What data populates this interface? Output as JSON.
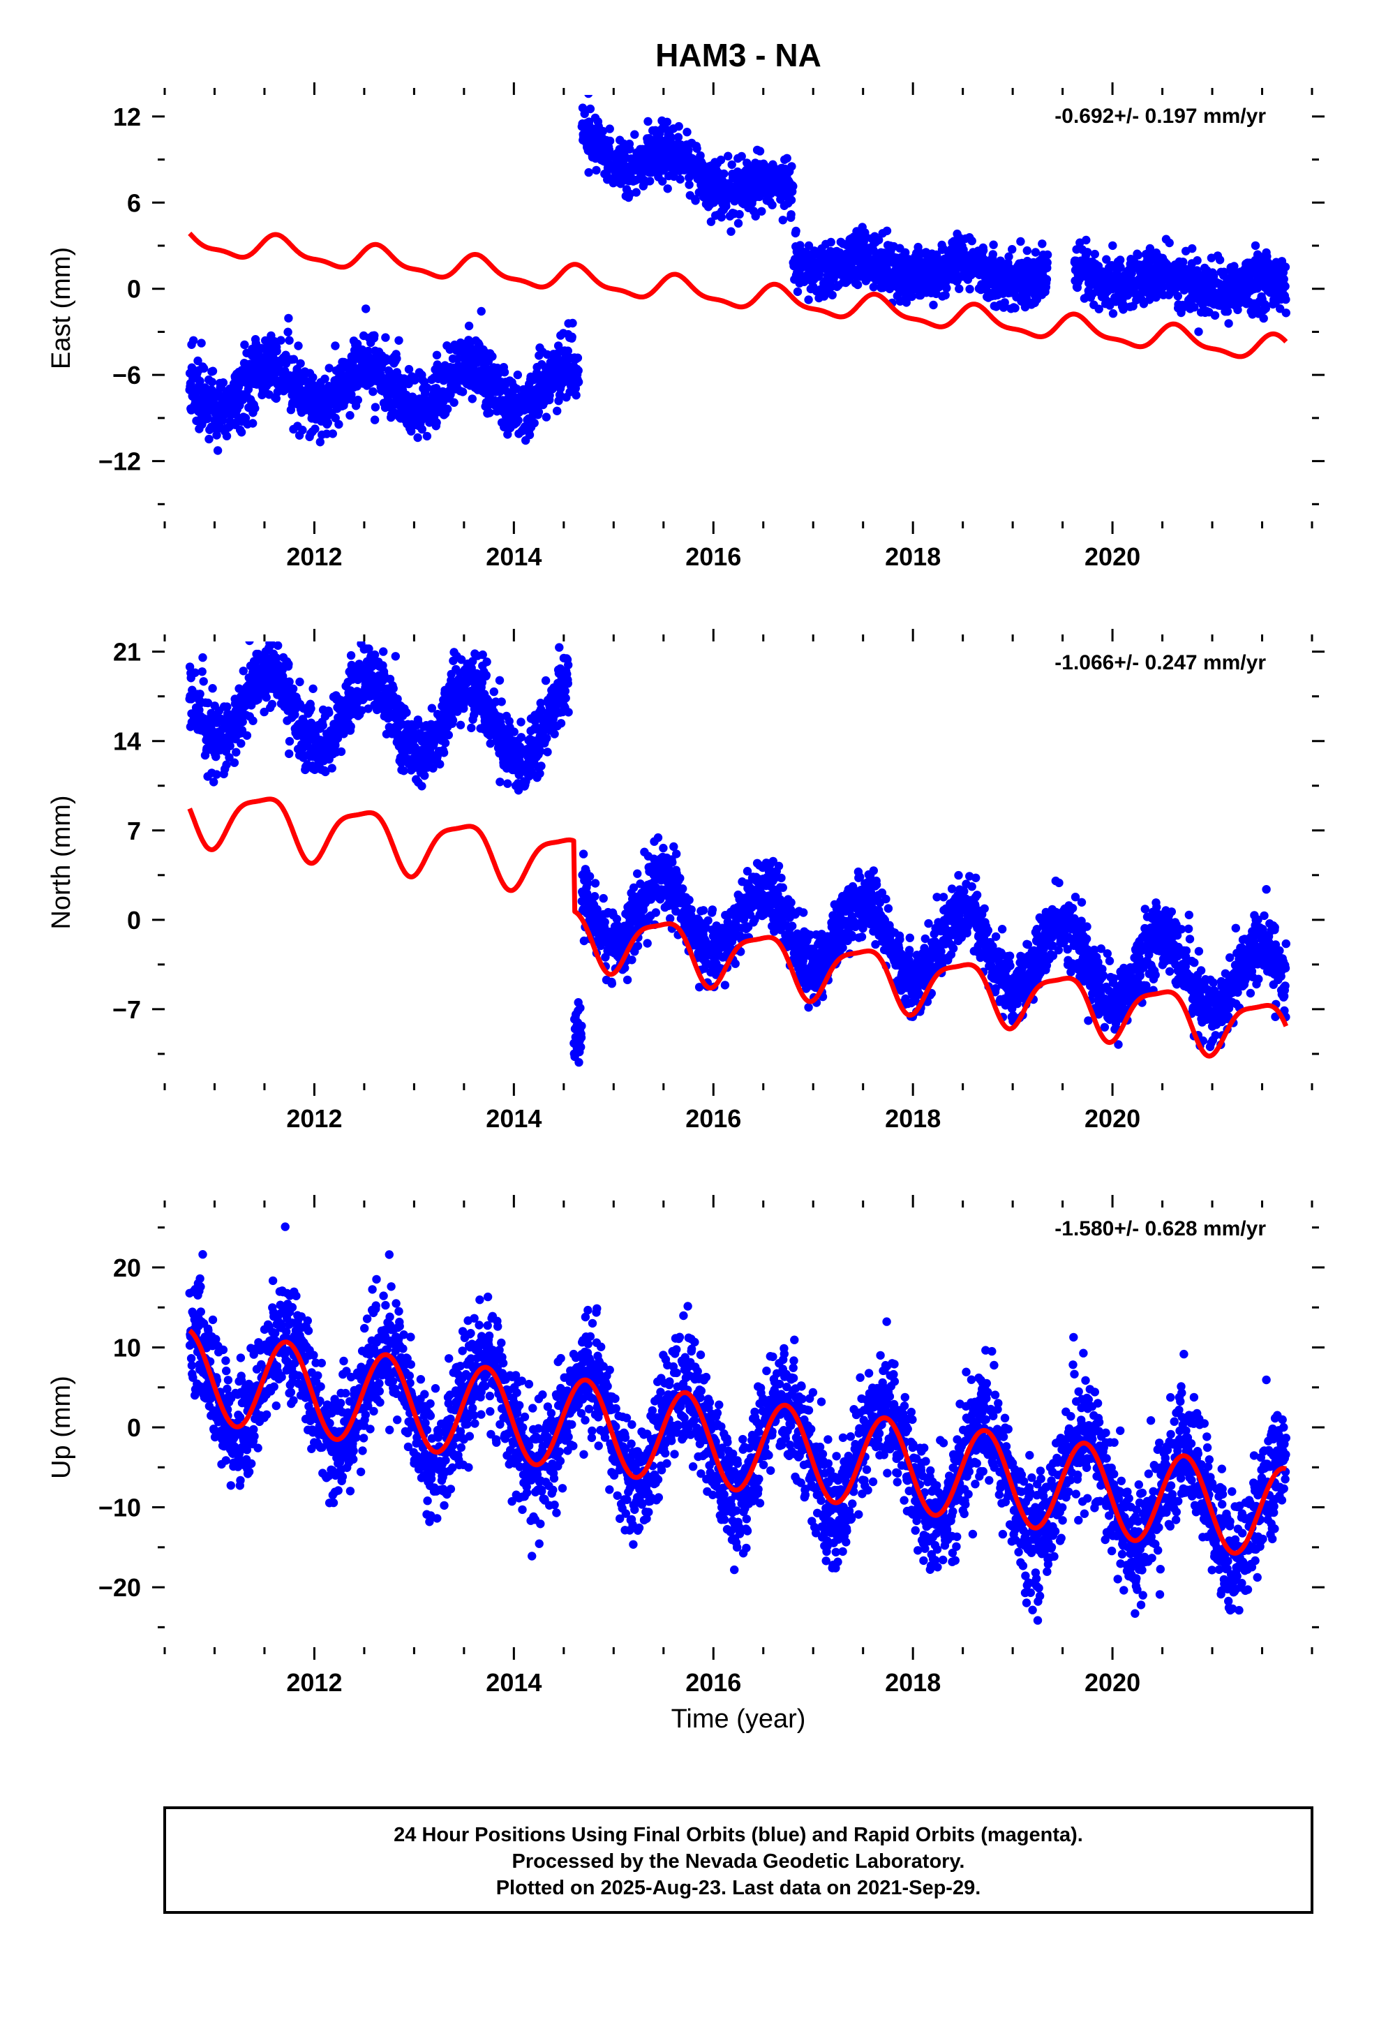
{
  "title": "HAM3 - NA",
  "xlabel": "Time (year)",
  "colors": {
    "final_orbits": "#0000ff",
    "model": "#ff0000",
    "frame": "#000000"
  },
  "footer": {
    "line1": "24 Hour Positions Using Final Orbits (blue) and Rapid Orbits (magenta).",
    "line2": "Processed by the Nevada Geodetic Laboratory.",
    "line3": "Plotted on 2025-Aug-23. Last data on 2021-Sep-29."
  },
  "chart_data": [
    {
      "type": "scatter",
      "component": "east",
      "ylabel": "East (mm)",
      "rate": "-0.692+/- 0.197 mm/yr",
      "xlim": [
        2010.5,
        2022.0
      ],
      "ylim": [
        -16.2,
        13.5
      ],
      "xticks": [
        2012,
        2014,
        2016,
        2018,
        2020
      ],
      "yticks": [
        12,
        6,
        0,
        -6,
        -12
      ],
      "observations": {
        "x_range": [
          2010.75,
          2021.74
        ],
        "gaps": [
          [
            2014.65,
            2014.68
          ],
          [
            2019.35,
            2019.62
          ]
        ],
        "segments": [
          {
            "x": [
              2010.75,
              2014.65
            ],
            "mean_start": -6.8,
            "slope_mm_per_yr": 0.0,
            "annual_amplitude": 1.5,
            "annual_peak_phase": 0.55,
            "scatter": 1.1
          },
          {
            "x": [
              2014.68,
              2016.8
            ],
            "mean_start": 10.2,
            "slope_mm_per_yr": -1.8,
            "annual_amplitude": 0.9,
            "annual_peak_phase": 0.6,
            "scatter": 0.9
          },
          {
            "x": [
              2016.8,
              2021.74
            ],
            "mean_start": 1.8,
            "slope_mm_per_yr": -0.35,
            "annual_amplitude": 0.5,
            "annual_peak_phase": 0.5,
            "scatter": 0.9
          }
        ]
      },
      "model": {
        "x_range": [
          2010.75,
          2021.74
        ],
        "start": 3.3,
        "slope_mm_per_yr": -0.692,
        "annual_amplitude": 0.8,
        "annual_peak_phase": 0.65,
        "semiannual_amplitude": 0.3,
        "semiannual_peak_phase": 0.1
      }
    },
    {
      "type": "scatter",
      "component": "north",
      "ylabel": "North (mm)",
      "rate": "-1.066+/- 0.247 mm/yr",
      "xlim": [
        2010.5,
        2022.0
      ],
      "ylim": [
        -12.8,
        21.8
      ],
      "xticks": [
        2012,
        2014,
        2016,
        2018,
        2020
      ],
      "yticks": [
        21,
        14,
        7,
        0,
        -7
      ],
      "observations": {
        "x_range": [
          2010.75,
          2021.74
        ],
        "gaps": [
          [
            2014.55,
            2014.6
          ]
        ],
        "segments": [
          {
            "x": [
              2010.75,
              2014.55
            ],
            "mean_start": 17.0,
            "slope_mm_per_yr": -0.5,
            "annual_amplitude": 2.8,
            "annual_peak_phase": 0.55,
            "scatter": 1.3
          },
          {
            "x": [
              2014.6,
              2014.68
            ],
            "mean_start": -9.0,
            "slope_mm_per_yr": 0.0,
            "annual_amplitude": 0.0,
            "annual_peak_phase": 0.5,
            "scatter": 1.0
          },
          {
            "x": [
              2014.68,
              2021.74
            ],
            "mean_start": 1.2,
            "slope_mm_per_yr": -0.9,
            "annual_amplitude": 2.8,
            "annual_peak_phase": 0.5,
            "scatter": 1.3
          }
        ]
      },
      "model": {
        "x_range": [
          2010.75,
          2021.74
        ],
        "start": 8.5,
        "slope_mm_per_yr": -1.066,
        "annual_amplitude": 2.2,
        "annual_peak_phase": 0.48,
        "semiannual_amplitude": 0.6,
        "semiannual_peak_phase": 0.2,
        "offsets": [
          {
            "x": 2014.6,
            "size": -5.5
          }
        ]
      }
    },
    {
      "type": "scatter",
      "component": "up",
      "ylabel": "Up (mm)",
      "rate": "-1.580+/- 0.628 mm/yr",
      "xlim": [
        2010.5,
        2022.0
      ],
      "ylim": [
        -27.5,
        27.5
      ],
      "xticks": [
        2012,
        2014,
        2016,
        2018,
        2020
      ],
      "yticks": [
        20,
        10,
        0,
        -10,
        -20
      ],
      "observations": {
        "x_range": [
          2010.75,
          2021.74
        ],
        "gaps": [],
        "segments": [
          {
            "x": [
              2010.75,
              2021.74
            ],
            "mean_start": 6.5,
            "slope_mm_per_yr": -1.58,
            "annual_amplitude": 6.5,
            "annual_peak_phase": 0.72,
            "scatter": 3.6
          }
        ]
      },
      "model": {
        "x_range": [
          2010.75,
          2021.74
        ],
        "start": 6.5,
        "slope_mm_per_yr": -1.58,
        "annual_amplitude": 5.7,
        "annual_peak_phase": 0.72,
        "semiannual_amplitude": 0.0,
        "semiannual_peak_phase": 0.0
      }
    }
  ]
}
